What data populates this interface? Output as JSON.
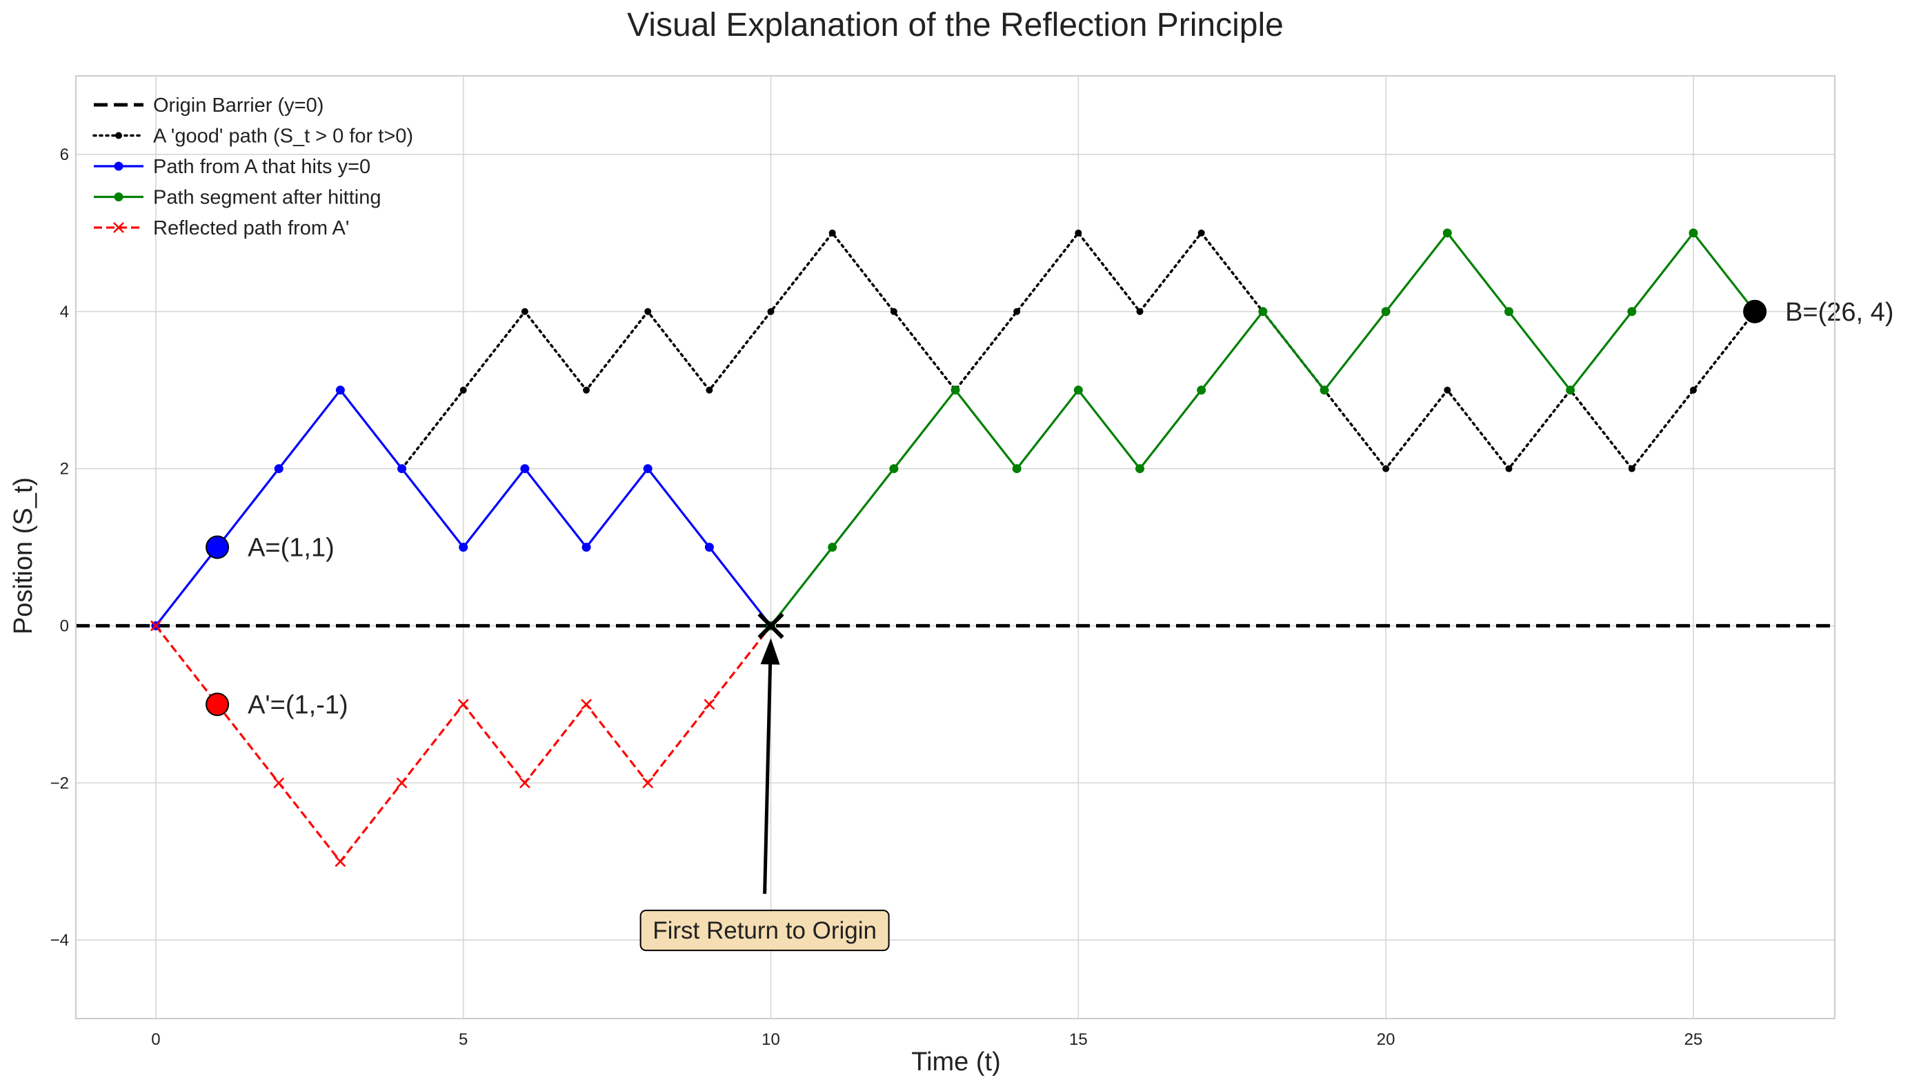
{
  "chart_data": {
    "type": "line",
    "title": "Visual Explanation of the Reflection Principle",
    "xlabel": "Time (t)",
    "ylabel": "Position (S_t)",
    "xlim": [
      -1.3,
      27.3
    ],
    "ylim": [
      -5,
      7
    ],
    "xticks": [
      0,
      5,
      10,
      15,
      20,
      25
    ],
    "yticks": [
      -4,
      -2,
      0,
      2,
      4,
      6
    ],
    "grid": true,
    "legend_position": "top-left",
    "series": [
      {
        "name": "Origin Barrier (y=0)",
        "style": "dashed",
        "color": "#000000",
        "marker": "none",
        "x": [
          -1.3,
          27.3
        ],
        "y": [
          0,
          0
        ]
      },
      {
        "name": "A 'good' path (S_t > 0 for t>0)",
        "style": "dotted",
        "color": "#000000",
        "marker": "dot",
        "x": [
          4,
          5,
          6,
          7,
          8,
          9,
          10,
          11,
          12,
          13,
          14,
          15,
          16,
          17,
          18,
          19,
          20,
          21,
          22,
          23,
          24,
          25,
          26
        ],
        "y": [
          2,
          3,
          4,
          3,
          4,
          3,
          4,
          5,
          4,
          3,
          4,
          5,
          4,
          5,
          4,
          3,
          2,
          3,
          2,
          3,
          2,
          3,
          4
        ]
      },
      {
        "name": "Path from A that hits y=0",
        "style": "solid",
        "color": "#0000ff",
        "marker": "circle",
        "x": [
          0,
          1,
          2,
          3,
          4,
          5,
          6,
          7,
          8,
          9,
          10
        ],
        "y": [
          0,
          1,
          2,
          3,
          2,
          1,
          2,
          1,
          2,
          1,
          0
        ]
      },
      {
        "name": "Path segment after hitting",
        "style": "solid",
        "color": "#008000",
        "marker": "circle",
        "x": [
          10,
          11,
          12,
          13,
          14,
          15,
          16,
          17,
          18,
          19,
          20,
          21,
          22,
          23,
          24,
          25,
          26
        ],
        "y": [
          0,
          1,
          2,
          3,
          2,
          3,
          2,
          3,
          4,
          3,
          4,
          5,
          4,
          3,
          4,
          5,
          4
        ]
      },
      {
        "name": "Reflected path from A'",
        "style": "dashed",
        "color": "#ff0000",
        "marker": "x",
        "x": [
          0,
          1,
          2,
          3,
          4,
          5,
          6,
          7,
          8,
          9,
          10
        ],
        "y": [
          0,
          -1,
          -2,
          -3,
          -2,
          -1,
          -2,
          -1,
          -2,
          -1,
          0
        ]
      }
    ],
    "points": [
      {
        "label": "A=(1,1)",
        "x": 1,
        "y": 1,
        "color": "#0000ff"
      },
      {
        "label": "A'=(1,-1)",
        "x": 1,
        "y": -1,
        "color": "#ff0000"
      },
      {
        "label": "B=(26, 4)",
        "x": 26,
        "y": 4,
        "color": "#000000"
      }
    ],
    "annotation": {
      "text": "First Return to Origin",
      "target": [
        10,
        0
      ],
      "text_position": [
        9.9,
        -3.5
      ],
      "box_color": "#f5deb3"
    }
  }
}
